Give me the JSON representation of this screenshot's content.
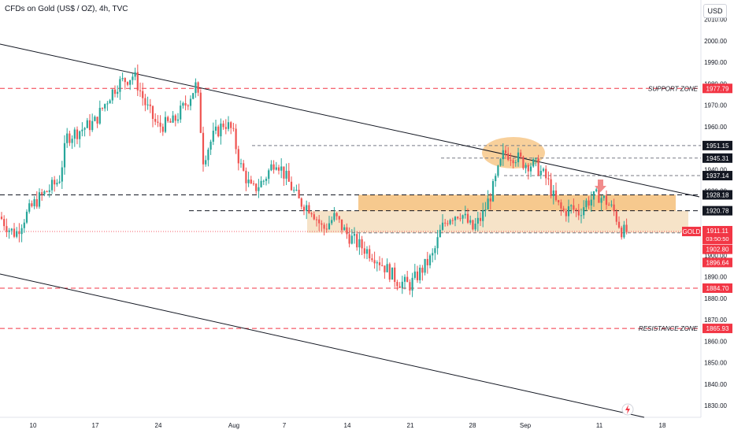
{
  "header": {
    "title": "CFDs on Gold (US$ / OZ), 4h, TVC",
    "currency": "USD"
  },
  "colors": {
    "up": "#26a69a",
    "down": "#ef5350",
    "red_level": "#f23645",
    "black_label": "#131722",
    "zone": "#f5c07a",
    "zone_dark": "#e8a550"
  },
  "chart_data": {
    "type": "candlestick",
    "title": "CFDs on Gold (US$ / OZ), 4h, TVC",
    "symbol": "GOLD",
    "ylim": [
      1825,
      2015
    ],
    "y_ticks": [
      1830,
      1840,
      1850,
      1860,
      1870,
      1880,
      1890,
      1900,
      1910,
      1920,
      1930,
      1940,
      1950,
      1960,
      1970,
      1980,
      1990,
      2000,
      2010
    ],
    "x_ticks": [
      "10",
      "17",
      "24",
      "Aug",
      "7",
      "14",
      "21",
      "28",
      "Sep",
      "11",
      "18"
    ],
    "candle_anchors": [
      [
        0,
        1918
      ],
      [
        12,
        1912
      ],
      [
        20,
        1910
      ],
      [
        30,
        1917
      ],
      [
        45,
        1925
      ],
      [
        60,
        1930
      ],
      [
        75,
        1935
      ],
      [
        85,
        1955
      ],
      [
        100,
        1958
      ],
      [
        120,
        1962
      ],
      [
        140,
        1975
      ],
      [
        150,
        1980
      ],
      [
        160,
        1982
      ],
      [
        170,
        1984
      ],
      [
        185,
        1970
      ],
      [
        200,
        1960
      ],
      [
        220,
        1962
      ],
      [
        235,
        1970
      ],
      [
        250,
        1980
      ],
      [
        258,
        1945
      ],
      [
        270,
        1955
      ],
      [
        285,
        1962
      ],
      [
        295,
        1958
      ],
      [
        305,
        1942
      ],
      [
        320,
        1930
      ],
      [
        335,
        1935
      ],
      [
        350,
        1945
      ],
      [
        365,
        1935
      ],
      [
        380,
        1925
      ],
      [
        395,
        1922
      ],
      [
        410,
        1912
      ],
      [
        425,
        1918
      ],
      [
        440,
        1910
      ],
      [
        455,
        1905
      ],
      [
        475,
        1900
      ],
      [
        490,
        1894
      ],
      [
        505,
        1888
      ],
      [
        520,
        1886
      ],
      [
        535,
        1893
      ],
      [
        550,
        1900
      ],
      [
        560,
        1912
      ],
      [
        570,
        1918
      ],
      [
        585,
        1920
      ],
      [
        600,
        1912
      ],
      [
        612,
        1918
      ],
      [
        625,
        1930
      ],
      [
        640,
        1948
      ],
      [
        655,
        1946
      ],
      [
        665,
        1943
      ],
      [
        680,
        1942
      ],
      [
        695,
        1935
      ],
      [
        705,
        1925
      ],
      [
        715,
        1920
      ],
      [
        725,
        1922
      ],
      [
        735,
        1920
      ],
      [
        745,
        1925
      ],
      [
        760,
        1928
      ],
      [
        770,
        1925
      ],
      [
        780,
        1920
      ],
      [
        790,
        1911
      ],
      [
        797,
        1911
      ]
    ],
    "levels": [
      {
        "value": 1977.79,
        "label": "1977.79",
        "style": "red-dashed",
        "zone_text": "SUPPORT ZONE"
      },
      {
        "value": 1951.15,
        "label": "1951.15",
        "style": "gray-dashed"
      },
      {
        "value": 1945.31,
        "label": "1945.31",
        "style": "gray-dashed"
      },
      {
        "value": 1937.14,
        "label": "1937.14",
        "style": "gray-dashed"
      },
      {
        "value": 1928.18,
        "label": "1928.18",
        "style": "black-dashed"
      },
      {
        "value": 1920.78,
        "label": "1920.78",
        "style": "black-dashed"
      },
      {
        "value": 1910.47,
        "label": "1910.47",
        "style": "gray-dashed"
      },
      {
        "value": 1902.8,
        "label": "1902.80",
        "style": "red-tag"
      },
      {
        "value": 1896.64,
        "label": "1896.64",
        "style": "red-tag"
      },
      {
        "value": 1884.7,
        "label": "1884.70",
        "style": "red-dashed"
      },
      {
        "value": 1865.93,
        "label": "1865.93",
        "style": "red-dashed",
        "zone_text": "RESISTANCE ZONE"
      }
    ],
    "last_price": {
      "symbol": "GOLD",
      "value": 1911.11,
      "label": "1911.11",
      "countdown": "03:50:50"
    },
    "axis_labels_shown": [
      "2010.00",
      "2000.00",
      "1990.00",
      "1980.00",
      "1970.00",
      "1960.00",
      "1940.00",
      "1930.00",
      "1910.00",
      "1900.00",
      "1890.00",
      "1880.00",
      "1870.00",
      "1860.00",
      "1850.00",
      "1840.00",
      "1830.00"
    ],
    "grid": false,
    "drawings": {
      "trendlines": "descending channel (two black lines)",
      "zones": [
        "orange band 1920.78–1928.18",
        "light band 1910–1920",
        "orange ellipse around 1945–1951 top",
        "red down arrow"
      ]
    }
  },
  "footer": {
    "lightning_icon": "lightning-icon"
  }
}
